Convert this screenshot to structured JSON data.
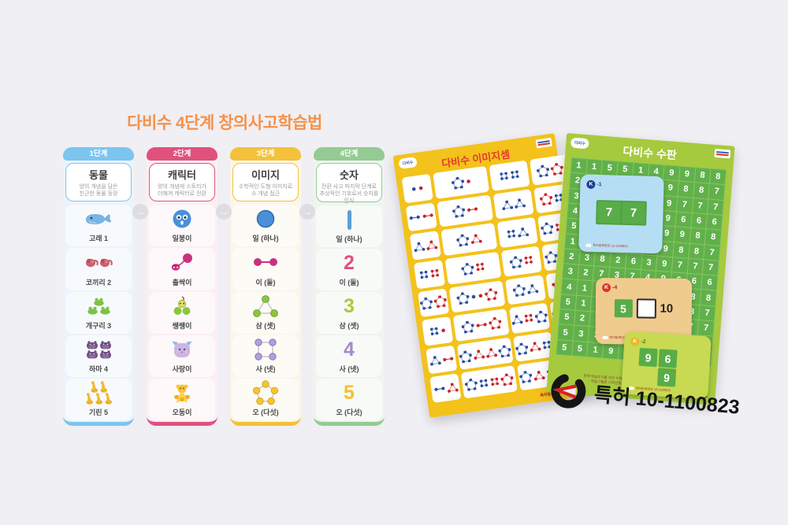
{
  "page": {
    "background": "#f0eff3"
  },
  "diagram": {
    "title": "다비수 4단계 창의사고학습법",
    "title_color": "#f6914b",
    "arrow_glyph": "→",
    "columns": [
      {
        "stage": "1단계",
        "title": "동물",
        "desc": "양의 개념을 담은\n친근한 동물 등장",
        "accent": "#7cc5ef",
        "tint": "#edf3fa",
        "items": [
          {
            "label": "고래 1",
            "type": "whale",
            "count": 1
          },
          {
            "label": "코끼리 2",
            "type": "elephant",
            "count": 2
          },
          {
            "label": "개구리 3",
            "type": "frog",
            "count": 3
          },
          {
            "label": "하마 4",
            "type": "hippo",
            "count": 4
          },
          {
            "label": "기린 5",
            "type": "giraffe",
            "count": 5
          }
        ]
      },
      {
        "stage": "2단계",
        "title": "캐릭터",
        "desc": "양의 개념에 스토리가\n더해져 캐릭터로 전환",
        "accent": "#e0517e",
        "tint": "#fbeff4",
        "items": [
          {
            "label": "일봉이",
            "type": "char1"
          },
          {
            "label": "촐싹이",
            "type": "char2"
          },
          {
            "label": "쌩쌩이",
            "type": "char3"
          },
          {
            "label": "사랑이",
            "type": "char4"
          },
          {
            "label": "오동이",
            "type": "char5"
          }
        ]
      },
      {
        "stage": "3단계",
        "title": "이미지",
        "desc": "수학적인 도형 이미지로\n수 개념 접근",
        "accent": "#f3c13a",
        "tint": "#fbf6eb",
        "items": [
          {
            "label": "일 (하나)",
            "type": "shape1"
          },
          {
            "label": "이 (둘)",
            "type": "shape2"
          },
          {
            "label": "삼 (셋)",
            "type": "shape3"
          },
          {
            "label": "사 (넷)",
            "type": "shape4"
          },
          {
            "label": "오 (다섯)",
            "type": "shape5"
          }
        ]
      },
      {
        "stage": "4단계",
        "title": "숫자",
        "desc": "전환 사고 마지막 단계로\n추상적인 기호로서 숫자를\n인식",
        "accent": "#94cb94",
        "tint": "#eff4ef",
        "items": [
          {
            "label": "일 (하나)",
            "type": "num1",
            "digit": "1",
            "color": "#5b9fd8"
          },
          {
            "label": "이 (둘)",
            "type": "num",
            "digit": "2",
            "color": "#e0517e"
          },
          {
            "label": "삼 (셋)",
            "type": "num",
            "digit": "3",
            "color": "#abc93e"
          },
          {
            "label": "사 (넷)",
            "type": "num",
            "digit": "4",
            "color": "#a58ccb"
          },
          {
            "label": "오 (다섯)",
            "type": "num",
            "digit": "5",
            "color": "#f2c12e"
          }
        ]
      }
    ]
  },
  "posters": {
    "image_board": {
      "title": "다비수 이미지셈",
      "title_color": "#e23b2e",
      "background": "#f3c21b",
      "logo": "다비수",
      "fineprint": "특허등록번호 10-1100823",
      "rows": [
        [
          "db dr",
          "pb dr",
          "qb qb",
          "pb pr pb"
        ],
        [
          "lb lr",
          "pb lr",
          "tb tb",
          "pr qb dg tr"
        ],
        [
          "tb tr",
          "pb tr",
          "qb tb",
          "pb qr lg tr"
        ],
        [
          "qb qr",
          "pb qr",
          "pb qr",
          "pb qb tg lr"
        ],
        [
          "pb pr",
          "pb db dr pr",
          "pb tb",
          "pr qb tb dr"
        ],
        [
          "qb dr",
          "pb lr pr",
          "tb qr pb",
          "pb qr tb pr"
        ],
        [
          "tb lr",
          "pb tr tr pb",
          "pb tr qb",
          "pb qr tr pb"
        ],
        [
          "lb tr",
          "pb qb qr pr",
          "pb tr qb",
          "pr qb tb pr"
        ]
      ]
    },
    "number_board": {
      "title": "다비수 수판",
      "background": "#a6ca3d",
      "logo": "다비수",
      "grid": [
        "1155149988",
        "2266239887",
        "3377329777",
        "4488419666",
        "5599519988",
        "1491529887",
        "2382639777",
        "3273749666",
        "4164859988",
        "5155969887",
        "5246789777",
        "5337896966",
        "5519999887"
      ],
      "cards": [
        {
          "badge": "K",
          "tag": "-1",
          "cells": [
            "7",
            "7"
          ],
          "desc": "특허등록번호 10-1100823"
        },
        {
          "badge": "K",
          "tag": "-4",
          "cells": [
            "5",
            "10"
          ],
          "desc": "특허등록번호 10-1100823"
        },
        {
          "badge": "K",
          "tag": "-2",
          "cells": [
            "9",
            "6",
            "9"
          ],
          "desc": "특허등록번호 10-1100823"
        }
      ],
      "fineprint1": "전체 학습도구를 가진 수학 학습법 교육 특허등록번호 10-1100823",
      "fineprint2": "학습그림판 디자인등록번호 30-0611235 / 30-0611236",
      "brand": "다비수"
    }
  },
  "patent": {
    "label_prefix": "특허",
    "number": "10-1100823"
  }
}
